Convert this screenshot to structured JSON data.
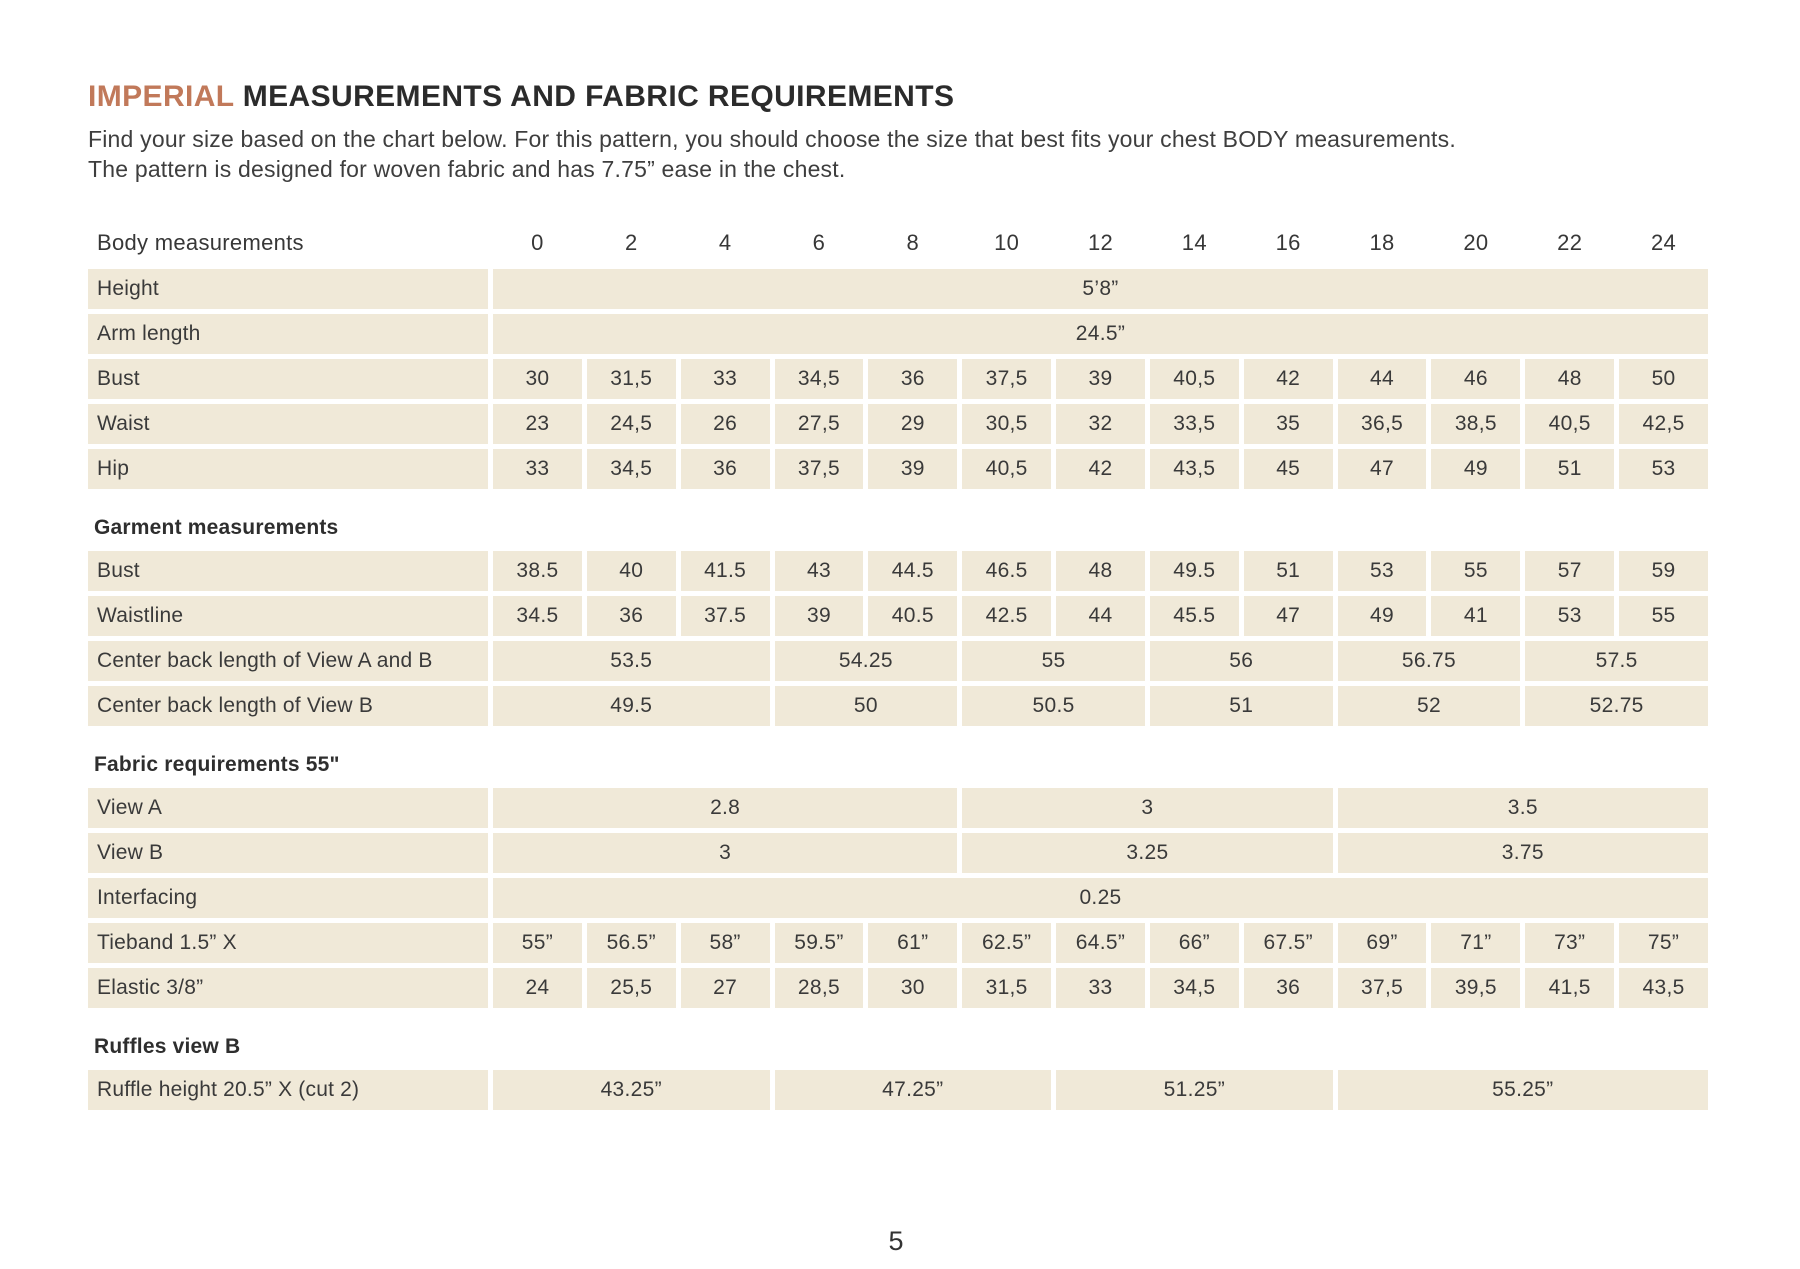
{
  "colors": {
    "accent": "#c1795a",
    "cell_bg": "#f0e9d8",
    "text_dark": "#3a3a3a"
  },
  "page": {
    "title_highlight": "IMPERIAL",
    "title_rest": " MEASUREMENTS AND FABRIC REQUIREMENTS",
    "subtitle_line1": "Find your size based on the chart below. For this pattern, you should choose the size that best fits your chest BODY measurements.",
    "subtitle_line2": "The pattern is designed for woven fabric and has 7.75” ease in the chest.",
    "page_number": "5"
  },
  "table": {
    "header_label": "Body measurements",
    "sizes": [
      "0",
      "2",
      "4",
      "6",
      "8",
      "10",
      "12",
      "14",
      "16",
      "18",
      "20",
      "22",
      "24"
    ],
    "rows": [
      {
        "label": "Height",
        "cells": [
          {
            "span": 13,
            "value": "5’8”"
          }
        ]
      },
      {
        "label": "Arm length",
        "cells": [
          {
            "span": 13,
            "value": "24.5”"
          }
        ]
      },
      {
        "label": "Bust",
        "cells": [
          {
            "span": 1,
            "value": "30"
          },
          {
            "span": 1,
            "value": "31,5"
          },
          {
            "span": 1,
            "value": "33"
          },
          {
            "span": 1,
            "value": "34,5"
          },
          {
            "span": 1,
            "value": "36"
          },
          {
            "span": 1,
            "value": "37,5"
          },
          {
            "span": 1,
            "value": "39"
          },
          {
            "span": 1,
            "value": "40,5"
          },
          {
            "span": 1,
            "value": "42"
          },
          {
            "span": 1,
            "value": "44"
          },
          {
            "span": 1,
            "value": "46"
          },
          {
            "span": 1,
            "value": "48"
          },
          {
            "span": 1,
            "value": "50"
          }
        ]
      },
      {
        "label": "Waist",
        "cells": [
          {
            "span": 1,
            "value": "23"
          },
          {
            "span": 1,
            "value": "24,5"
          },
          {
            "span": 1,
            "value": "26"
          },
          {
            "span": 1,
            "value": "27,5"
          },
          {
            "span": 1,
            "value": "29"
          },
          {
            "span": 1,
            "value": "30,5"
          },
          {
            "span": 1,
            "value": "32"
          },
          {
            "span": 1,
            "value": "33,5"
          },
          {
            "span": 1,
            "value": "35"
          },
          {
            "span": 1,
            "value": "36,5"
          },
          {
            "span": 1,
            "value": "38,5"
          },
          {
            "span": 1,
            "value": "40,5"
          },
          {
            "span": 1,
            "value": "42,5"
          }
        ]
      },
      {
        "label": "Hip",
        "cells": [
          {
            "span": 1,
            "value": "33"
          },
          {
            "span": 1,
            "value": "34,5"
          },
          {
            "span": 1,
            "value": "36"
          },
          {
            "span": 1,
            "value": "37,5"
          },
          {
            "span": 1,
            "value": "39"
          },
          {
            "span": 1,
            "value": "40,5"
          },
          {
            "span": 1,
            "value": "42"
          },
          {
            "span": 1,
            "value": "43,5"
          },
          {
            "span": 1,
            "value": "45"
          },
          {
            "span": 1,
            "value": "47"
          },
          {
            "span": 1,
            "value": "49"
          },
          {
            "span": 1,
            "value": "51"
          },
          {
            "span": 1,
            "value": "53"
          }
        ]
      },
      {
        "type": "section",
        "label": "Garment measurements"
      },
      {
        "label": "Bust",
        "cells": [
          {
            "span": 1,
            "value": "38.5"
          },
          {
            "span": 1,
            "value": "40"
          },
          {
            "span": 1,
            "value": "41.5"
          },
          {
            "span": 1,
            "value": "43"
          },
          {
            "span": 1,
            "value": "44.5"
          },
          {
            "span": 1,
            "value": "46.5"
          },
          {
            "span": 1,
            "value": "48"
          },
          {
            "span": 1,
            "value": "49.5"
          },
          {
            "span": 1,
            "value": "51"
          },
          {
            "span": 1,
            "value": "53"
          },
          {
            "span": 1,
            "value": "55"
          },
          {
            "span": 1,
            "value": "57"
          },
          {
            "span": 1,
            "value": "59"
          }
        ]
      },
      {
        "label": "Waistline",
        "cells": [
          {
            "span": 1,
            "value": "34.5"
          },
          {
            "span": 1,
            "value": "36"
          },
          {
            "span": 1,
            "value": "37.5"
          },
          {
            "span": 1,
            "value": "39"
          },
          {
            "span": 1,
            "value": "40.5"
          },
          {
            "span": 1,
            "value": "42.5"
          },
          {
            "span": 1,
            "value": "44"
          },
          {
            "span": 1,
            "value": "45.5"
          },
          {
            "span": 1,
            "value": "47"
          },
          {
            "span": 1,
            "value": "49"
          },
          {
            "span": 1,
            "value": "41"
          },
          {
            "span": 1,
            "value": "53"
          },
          {
            "span": 1,
            "value": "55"
          }
        ]
      },
      {
        "label": "Center back length of View A and B",
        "cells": [
          {
            "span": 3,
            "value": "53.5"
          },
          {
            "span": 2,
            "value": "54.25"
          },
          {
            "span": 2,
            "value": "55"
          },
          {
            "span": 2,
            "value": "56"
          },
          {
            "span": 2,
            "value": "56.75"
          },
          {
            "span": 2,
            "value": "57.5"
          }
        ]
      },
      {
        "label": "Center back length of View  B",
        "cells": [
          {
            "span": 3,
            "value": "49.5"
          },
          {
            "span": 2,
            "value": "50"
          },
          {
            "span": 2,
            "value": "50.5"
          },
          {
            "span": 2,
            "value": "51"
          },
          {
            "span": 2,
            "value": "52"
          },
          {
            "span": 2,
            "value": "52.75"
          }
        ]
      },
      {
        "type": "section",
        "label": "Fabric requirements 55\""
      },
      {
        "label": "View A",
        "cells": [
          {
            "span": 5,
            "value": "2.8"
          },
          {
            "span": 4,
            "value": "3"
          },
          {
            "span": 4,
            "value": "3.5"
          }
        ]
      },
      {
        "label": "View B",
        "cells": [
          {
            "span": 5,
            "value": "3"
          },
          {
            "span": 4,
            "value": "3.25"
          },
          {
            "span": 4,
            "value": "3.75"
          }
        ]
      },
      {
        "label": "Interfacing",
        "cells": [
          {
            "span": 13,
            "value": "0.25"
          }
        ]
      },
      {
        "label": "Tieband 1.5” X",
        "cells": [
          {
            "span": 1,
            "value": "55”"
          },
          {
            "span": 1,
            "value": "56.5”"
          },
          {
            "span": 1,
            "value": "58”"
          },
          {
            "span": 1,
            "value": "59.5”"
          },
          {
            "span": 1,
            "value": "61”"
          },
          {
            "span": 1,
            "value": "62.5”"
          },
          {
            "span": 1,
            "value": "64.5”"
          },
          {
            "span": 1,
            "value": "66”"
          },
          {
            "span": 1,
            "value": "67.5”"
          },
          {
            "span": 1,
            "value": "69”"
          },
          {
            "span": 1,
            "value": "71”"
          },
          {
            "span": 1,
            "value": "73”"
          },
          {
            "span": 1,
            "value": "75”"
          }
        ]
      },
      {
        "label": "Elastic 3/8”",
        "cells": [
          {
            "span": 1,
            "value": "24"
          },
          {
            "span": 1,
            "value": "25,5"
          },
          {
            "span": 1,
            "value": "27"
          },
          {
            "span": 1,
            "value": "28,5"
          },
          {
            "span": 1,
            "value": "30"
          },
          {
            "span": 1,
            "value": "31,5"
          },
          {
            "span": 1,
            "value": "33"
          },
          {
            "span": 1,
            "value": "34,5"
          },
          {
            "span": 1,
            "value": "36"
          },
          {
            "span": 1,
            "value": "37,5"
          },
          {
            "span": 1,
            "value": "39,5"
          },
          {
            "span": 1,
            "value": "41,5"
          },
          {
            "span": 1,
            "value": "43,5"
          }
        ]
      },
      {
        "type": "section",
        "label": "Ruffles view B"
      },
      {
        "label": "Ruffle height 20.5”  X (cut 2)",
        "cells": [
          {
            "span": 3,
            "value": "43.25”"
          },
          {
            "span": 3,
            "value": "47.25”"
          },
          {
            "span": 3,
            "value": "51.25”"
          },
          {
            "span": 4,
            "value": "55.25”"
          }
        ]
      }
    ]
  }
}
